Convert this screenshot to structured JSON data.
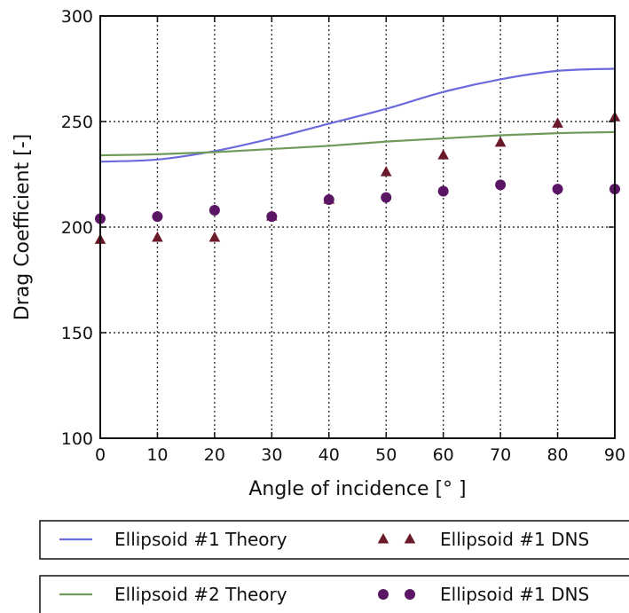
{
  "chart_data": {
    "type": "line",
    "xlabel": "Angle of incidence [° ]",
    "ylabel": "Drag Coefficient [-]",
    "xlim": [
      0,
      90
    ],
    "ylim": [
      100,
      300
    ],
    "xticks": [
      0,
      10,
      20,
      30,
      40,
      50,
      60,
      70,
      80,
      90
    ],
    "yticks": [
      100,
      150,
      200,
      250,
      300
    ],
    "xtick_labels": [
      "0",
      "10",
      "20",
      "30",
      "40",
      "50",
      "60",
      "70",
      "80",
      "90"
    ],
    "ytick_labels": [
      "100",
      "150",
      "200",
      "250",
      "300"
    ],
    "grid": true,
    "legend_position": "below",
    "series": [
      {
        "name": "Ellipsoid #1 Theory",
        "kind": "line",
        "color": "#6b6bde",
        "x": [
          0,
          10,
          20,
          30,
          40,
          50,
          60,
          70,
          80,
          90
        ],
        "y": [
          231,
          232,
          236,
          242,
          249,
          256,
          264,
          270,
          274,
          275
        ]
      },
      {
        "name": "Ellipsoid #2 Theory",
        "kind": "line",
        "color": "#6f9b5a",
        "x": [
          0,
          10,
          20,
          30,
          40,
          50,
          60,
          70,
          80,
          90
        ],
        "y": [
          234,
          234.5,
          235.5,
          237,
          238.5,
          240.5,
          242,
          243.5,
          244.5,
          245
        ]
      },
      {
        "name": "Ellipsoid #1 DNS",
        "kind": "marker",
        "marker": "triangle",
        "color": "#6b1a2a",
        "x": [
          0,
          10,
          20,
          30,
          40,
          50,
          60,
          70,
          80,
          90
        ],
        "y": [
          194,
          195,
          195,
          205,
          213,
          226,
          234,
          240,
          249,
          252
        ]
      },
      {
        "name": "Ellipsoid #1 DNS",
        "kind": "marker",
        "marker": "circle",
        "color": "#5a1565",
        "x": [
          0,
          10,
          20,
          30,
          40,
          50,
          60,
          70,
          80,
          90
        ],
        "y": [
          204,
          205,
          208,
          205,
          213,
          214,
          217,
          220,
          218,
          218
        ]
      }
    ]
  }
}
